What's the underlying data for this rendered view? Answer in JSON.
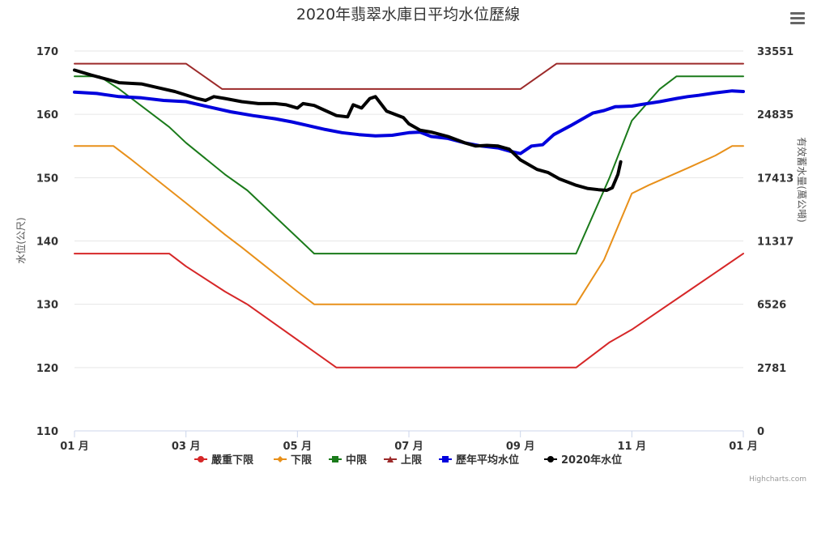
{
  "title": "2020年翡翠水庫日平均水位歷線",
  "credits": "Highcharts.com",
  "menu_icon": "hamburger-menu-icon",
  "chart_data": {
    "type": "line",
    "title": "2020年翡翠水庫日平均水位歷線",
    "ylabel": "水位(公尺)",
    "ylabel_right": "有效蓄水量(萬公噸)",
    "ylim": [
      110,
      170
    ],
    "y_ticks": [
      "110",
      "120",
      "130",
      "140",
      "150",
      "160",
      "170"
    ],
    "y_right_ticks": [
      "0",
      "2781",
      "6526",
      "11317",
      "17413",
      "24835",
      "33551"
    ],
    "x_domain": [
      0,
      12
    ],
    "x_ticks": [
      {
        "x": 0,
        "label": "01 月"
      },
      {
        "x": 2,
        "label": "03 月"
      },
      {
        "x": 4,
        "label": "05 月"
      },
      {
        "x": 6,
        "label": "07 月"
      },
      {
        "x": 8,
        "label": "09 月"
      },
      {
        "x": 10,
        "label": "11 月"
      },
      {
        "x": 12,
        "label": "01 月"
      }
    ],
    "grid": true,
    "legend_position": "bottom",
    "series": [
      {
        "name": "嚴重下限",
        "color": "#d62728",
        "width": 2,
        "marker": "circle",
        "points": [
          [
            0,
            138
          ],
          [
            1.7,
            138
          ],
          [
            2,
            136
          ],
          [
            2.7,
            132
          ],
          [
            3.1,
            130
          ],
          [
            4.7,
            120
          ],
          [
            9,
            120
          ],
          [
            9.6,
            124
          ],
          [
            10,
            126
          ],
          [
            11,
            132
          ],
          [
            12,
            138
          ]
        ]
      },
      {
        "name": "下限",
        "color": "#e8901a",
        "width": 2,
        "marker": "diamond",
        "points": [
          [
            0,
            155
          ],
          [
            0.7,
            155
          ],
          [
            1,
            153
          ],
          [
            2,
            146
          ],
          [
            2.7,
            141
          ],
          [
            3,
            139
          ],
          [
            4,
            132
          ],
          [
            4.3,
            130
          ],
          [
            9,
            130
          ],
          [
            9.5,
            137
          ],
          [
            10,
            147.5
          ],
          [
            10.3,
            148.8
          ],
          [
            11,
            151.5
          ],
          [
            11.5,
            153.5
          ],
          [
            11.8,
            155
          ],
          [
            12,
            155
          ]
        ]
      },
      {
        "name": "中限",
        "color": "#1a7a1a",
        "width": 2,
        "marker": "square",
        "points": [
          [
            0,
            166
          ],
          [
            0.45,
            166
          ],
          [
            0.8,
            164
          ],
          [
            1.7,
            158
          ],
          [
            2,
            155.5
          ],
          [
            2.7,
            150.5
          ],
          [
            3.1,
            148
          ],
          [
            4.3,
            138
          ],
          [
            9,
            138
          ],
          [
            9.6,
            150
          ],
          [
            10,
            159
          ],
          [
            10.5,
            164
          ],
          [
            10.8,
            166
          ],
          [
            12,
            166
          ]
        ]
      },
      {
        "name": "上限",
        "color": "#9c2a2a",
        "width": 2,
        "marker": "triangle",
        "points": [
          [
            0,
            168
          ],
          [
            2,
            168
          ],
          [
            2.65,
            164
          ],
          [
            8,
            164
          ],
          [
            8.65,
            168
          ],
          [
            12,
            168
          ]
        ]
      },
      {
        "name": "歷年平均水位",
        "color": "#0000dd",
        "width": 4,
        "marker": "square",
        "points": [
          [
            0,
            163.5
          ],
          [
            0.4,
            163.3
          ],
          [
            0.8,
            162.8
          ],
          [
            1.2,
            162.6
          ],
          [
            1.6,
            162.2
          ],
          [
            2,
            162.0
          ],
          [
            2.4,
            161.2
          ],
          [
            2.8,
            160.4
          ],
          [
            3.2,
            159.8
          ],
          [
            3.6,
            159.3
          ],
          [
            3.9,
            158.8
          ],
          [
            4.2,
            158.2
          ],
          [
            4.5,
            157.6
          ],
          [
            4.8,
            157.1
          ],
          [
            5.1,
            156.8
          ],
          [
            5.4,
            156.6
          ],
          [
            5.7,
            156.7
          ],
          [
            6.0,
            157.1
          ],
          [
            6.2,
            157.2
          ],
          [
            6.4,
            156.5
          ],
          [
            6.7,
            156.2
          ],
          [
            7.0,
            155.5
          ],
          [
            7.3,
            155.0
          ],
          [
            7.6,
            154.7
          ],
          [
            7.8,
            154.2
          ],
          [
            8.0,
            153.8
          ],
          [
            8.2,
            155.0
          ],
          [
            8.4,
            155.2
          ],
          [
            8.6,
            156.8
          ],
          [
            8.9,
            158.2
          ],
          [
            9.1,
            159.2
          ],
          [
            9.3,
            160.2
          ],
          [
            9.5,
            160.6
          ],
          [
            9.7,
            161.2
          ],
          [
            10,
            161.3
          ],
          [
            10.2,
            161.6
          ],
          [
            10.5,
            162.0
          ],
          [
            10.8,
            162.5
          ],
          [
            11.0,
            162.8
          ],
          [
            11.2,
            163.0
          ],
          [
            11.5,
            163.4
          ],
          [
            11.8,
            163.7
          ],
          [
            12,
            163.6
          ]
        ]
      },
      {
        "name": "2020年水位",
        "color": "#000000",
        "width": 4,
        "marker": "circle",
        "points": [
          [
            0,
            167
          ],
          [
            0.3,
            166.2
          ],
          [
            0.6,
            165.5
          ],
          [
            0.8,
            165
          ],
          [
            1.2,
            164.8
          ],
          [
            1.5,
            164.2
          ],
          [
            1.8,
            163.6
          ],
          [
            2.2,
            162.5
          ],
          [
            2.35,
            162.2
          ],
          [
            2.5,
            162.8
          ],
          [
            2.7,
            162.5
          ],
          [
            3.0,
            162
          ],
          [
            3.3,
            161.7
          ],
          [
            3.6,
            161.7
          ],
          [
            3.8,
            161.5
          ],
          [
            4.0,
            161
          ],
          [
            4.1,
            161.7
          ],
          [
            4.3,
            161.4
          ],
          [
            4.5,
            160.6
          ],
          [
            4.7,
            159.8
          ],
          [
            4.9,
            159.6
          ],
          [
            5.0,
            161.5
          ],
          [
            5.15,
            161
          ],
          [
            5.3,
            162.5
          ],
          [
            5.4,
            162.8
          ],
          [
            5.6,
            160.5
          ],
          [
            5.9,
            159.5
          ],
          [
            6.0,
            158.5
          ],
          [
            6.2,
            157.5
          ],
          [
            6.4,
            157.2
          ],
          [
            6.7,
            156.5
          ],
          [
            7.0,
            155.5
          ],
          [
            7.2,
            155.0
          ],
          [
            7.4,
            155.1
          ],
          [
            7.6,
            155.0
          ],
          [
            7.8,
            154.5
          ],
          [
            8.0,
            152.8
          ],
          [
            8.3,
            151.3
          ],
          [
            8.5,
            150.8
          ],
          [
            8.7,
            149.8
          ],
          [
            9.0,
            148.8
          ],
          [
            9.2,
            148.3
          ],
          [
            9.4,
            148.1
          ],
          [
            9.55,
            148.0
          ],
          [
            9.65,
            148.4
          ],
          [
            9.75,
            150.5
          ],
          [
            9.8,
            152.5
          ]
        ]
      }
    ]
  }
}
